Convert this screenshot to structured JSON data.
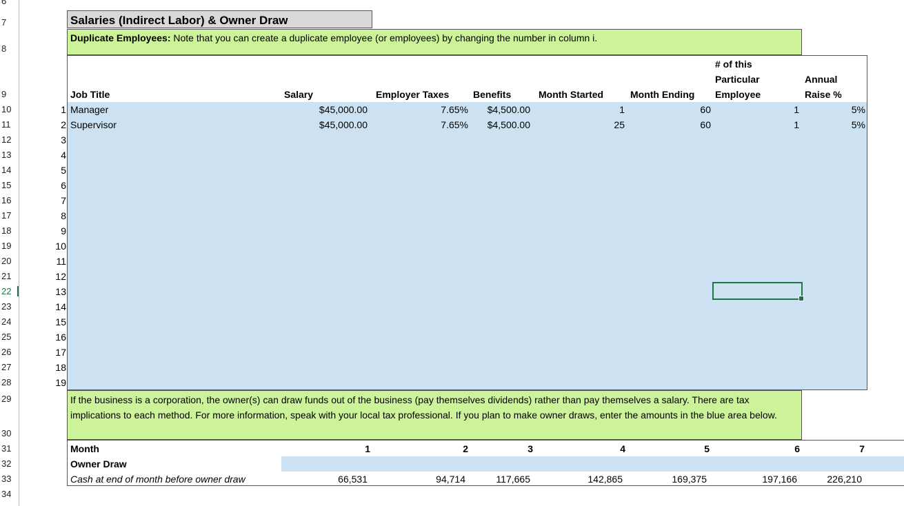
{
  "row_numbers": [
    "6",
    "7",
    "8",
    "9",
    "10",
    "11",
    "12",
    "13",
    "14",
    "15",
    "16",
    "17",
    "18",
    "19",
    "20",
    "21",
    "22",
    "23",
    "24",
    "25",
    "26",
    "27",
    "28",
    "29",
    "30",
    "31",
    "32",
    "33",
    "34"
  ],
  "active_row": "22",
  "section_title": "Salaries (Indirect Labor) & Owner Draw",
  "duplicate_note": {
    "bold": "Duplicate Employees:",
    "text": " Note that you can create a duplicate employee (or employees) by changing the number in column i."
  },
  "headers": {
    "job_title": "Job Title",
    "salary": "Salary",
    "employer_taxes": "Employer Taxes",
    "benefits": "Benefits",
    "month_started": "Month Started",
    "month_ending": "Month Ending",
    "num_employee_1": "# of this",
    "num_employee_2": "Particular",
    "num_employee_3": "Employee",
    "annual_raise_1": "Annual",
    "annual_raise_2": "Raise %"
  },
  "employee_numbers": [
    "1",
    "2",
    "3",
    "4",
    "5",
    "6",
    "7",
    "8",
    "9",
    "10",
    "11",
    "12",
    "13",
    "14",
    "15",
    "16",
    "17",
    "18",
    "19"
  ],
  "employees": [
    {
      "job_title": "Manager",
      "salary": "$45,000.00",
      "taxes": "7.65%",
      "benefits": "$4,500.00",
      "month_started": "1",
      "month_ending": "60",
      "count": "1",
      "raise": "5%"
    },
    {
      "job_title": "Supervisor",
      "salary": "$45,000.00",
      "taxes": "7.65%",
      "benefits": "$4,500.00",
      "month_started": "25",
      "month_ending": "60",
      "count": "1",
      "raise": "5%"
    }
  ],
  "owner_note": "If the business is a corporation, the owner(s) can draw funds out of the business (pay themselves dividends) rather than pay themselves a salary. There are tax implications to each method. For more information, speak with your local tax professional. If you plan to make owner draws, enter the amounts in the blue area below.",
  "bottom": {
    "month_label": "Month",
    "owner_draw_label": "Owner Draw",
    "cash_label": "Cash at end of month before owner draw",
    "months": [
      "1",
      "2",
      "3",
      "4",
      "5",
      "6",
      "7"
    ],
    "cash": [
      "66,531",
      "94,714",
      "117,665",
      "142,865",
      "169,375",
      "197,166",
      "226,210"
    ]
  }
}
